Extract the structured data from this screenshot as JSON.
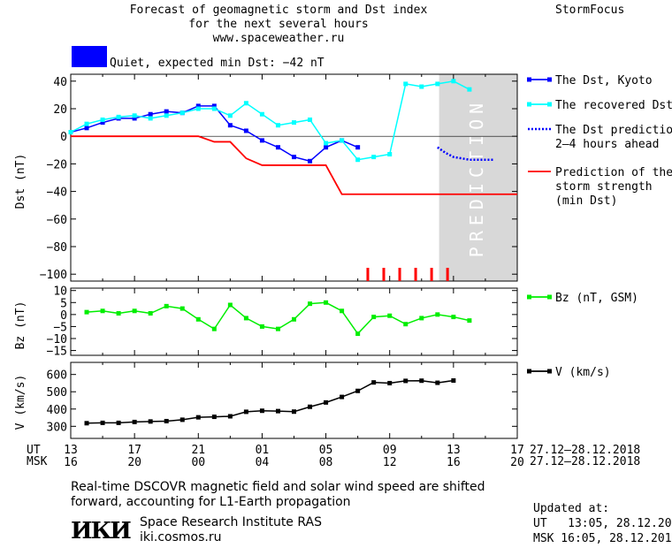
{
  "header": {
    "title_line1": "Forecast of geomagnetic storm and Dst index",
    "title_line2": "for the next several hours",
    "title_line3": "www.spaceweather.ru",
    "brand": "StormFocus"
  },
  "status": {
    "text": "Quiet, expected min Dst: −42 nT",
    "color": "#0000ff"
  },
  "time_axis": {
    "ut_label": "UT",
    "msk_label": "MSK",
    "ut_ticks": [
      "13",
      "17",
      "21",
      "01",
      "05",
      "09",
      "13",
      "17"
    ],
    "msk_ticks": [
      "16",
      "20",
      "00",
      "04",
      "08",
      "12",
      "16",
      "20"
    ],
    "ut_range_text": "27.12‒28.12.2018",
    "msk_range_text": "27.12‒28.12.2018"
  },
  "chart_data": [
    {
      "type": "line",
      "ylabel": "Dst (nT)",
      "ylim": [
        -105,
        45
      ],
      "yticks": [
        40,
        20,
        0,
        -20,
        -40,
        -60,
        -80,
        -100
      ],
      "x_range_hours": [
        0,
        28
      ],
      "prediction_region": {
        "from_hour": 23.1,
        "label": "PREDICTION"
      },
      "storm_markers_hours": [
        18.6,
        19.6,
        20.6,
        21.6,
        22.6,
        23.6
      ],
      "series": [
        {
          "name": "The Dst, Kyoto",
          "color": "#0000ff",
          "style": "line-square",
          "points": [
            [
              0,
              3
            ],
            [
              1,
              6
            ],
            [
              2,
              10
            ],
            [
              3,
              13
            ],
            [
              4,
              13
            ],
            [
              5,
              16
            ],
            [
              6,
              18
            ],
            [
              7,
              17
            ],
            [
              8,
              22
            ],
            [
              9,
              22
            ],
            [
              10,
              8
            ],
            [
              11,
              4
            ],
            [
              12,
              -3
            ],
            [
              13,
              -8
            ],
            [
              14,
              -15
            ],
            [
              15,
              -18
            ],
            [
              16,
              -8
            ],
            [
              17,
              -3
            ],
            [
              18,
              -8
            ]
          ]
        },
        {
          "name": "The recovered Dst",
          "color": "#00ffff",
          "style": "line-square",
          "points": [
            [
              0,
              3
            ],
            [
              1,
              9
            ],
            [
              2,
              12
            ],
            [
              3,
              14
            ],
            [
              4,
              15
            ],
            [
              5,
              13
            ],
            [
              6,
              15
            ],
            [
              7,
              17
            ],
            [
              8,
              20
            ],
            [
              9,
              20
            ],
            [
              10,
              15
            ],
            [
              11,
              24
            ],
            [
              12,
              16
            ],
            [
              13,
              8
            ],
            [
              14,
              10
            ],
            [
              15,
              12
            ],
            [
              16,
              -5
            ],
            [
              17,
              -3
            ],
            [
              18,
              -17
            ],
            [
              19,
              -15
            ],
            [
              20,
              -13
            ],
            [
              21,
              38
            ],
            [
              22,
              36
            ],
            [
              23,
              38
            ],
            [
              24,
              40
            ],
            [
              25,
              34
            ]
          ]
        },
        {
          "name": "The Dst prediction\n2–4 hours ahead",
          "color": "#0000ff",
          "style": "dotted",
          "points": [
            [
              23.0,
              -8
            ],
            [
              23.5,
              -12
            ],
            [
              24.0,
              -15
            ],
            [
              25.0,
              -17
            ],
            [
              26.5,
              -17
            ]
          ]
        },
        {
          "name": "Prediction of the\nstorm strength\n(min Dst)",
          "color": "#ff0000",
          "style": "line",
          "points": [
            [
              0,
              0
            ],
            [
              8,
              0
            ],
            [
              9,
              -4
            ],
            [
              10,
              -4
            ],
            [
              11,
              -16
            ],
            [
              12,
              -21
            ],
            [
              16,
              -21
            ],
            [
              17,
              -42
            ],
            [
              28,
              -42
            ]
          ]
        }
      ]
    },
    {
      "type": "line",
      "ylabel": "Bz (nT)",
      "ylim": [
        -17,
        11
      ],
      "yticks": [
        10,
        5,
        0,
        -5,
        -10,
        -15
      ],
      "series": [
        {
          "name": "Bz (nT, GSM)",
          "color": "#00ee00",
          "style": "line-square",
          "points": [
            [
              1,
              1
            ],
            [
              2,
              1.5
            ],
            [
              3,
              0.5
            ],
            [
              4,
              1.5
            ],
            [
              5,
              0.5
            ],
            [
              6,
              3.5
            ],
            [
              7,
              2.5
            ],
            [
              8,
              -2
            ],
            [
              9,
              -6
            ],
            [
              10,
              4
            ],
            [
              11,
              -1.5
            ],
            [
              12,
              -5
            ],
            [
              13,
              -6
            ],
            [
              14,
              -2
            ],
            [
              15,
              4.5
            ],
            [
              16,
              5
            ],
            [
              17,
              1.5
            ],
            [
              18,
              -8
            ],
            [
              19,
              -1
            ],
            [
              20,
              -0.5
            ],
            [
              21,
              -4
            ],
            [
              22,
              -1.5
            ],
            [
              23,
              0
            ],
            [
              24,
              -1
            ],
            [
              25,
              -2.5
            ]
          ]
        }
      ]
    },
    {
      "type": "line",
      "ylabel": "V (km/s)",
      "ylim": [
        230,
        670
      ],
      "yticks": [
        600,
        500,
        400,
        300
      ],
      "series": [
        {
          "name": "V (km/s)",
          "color": "#000000",
          "style": "line-square",
          "points": [
            [
              1,
              318
            ],
            [
              2,
              320
            ],
            [
              3,
              320
            ],
            [
              4,
              325
            ],
            [
              5,
              328
            ],
            [
              6,
              330
            ],
            [
              7,
              338
            ],
            [
              8,
              352
            ],
            [
              9,
              355
            ],
            [
              10,
              358
            ],
            [
              11,
              384
            ],
            [
              12,
              390
            ],
            [
              13,
              388
            ],
            [
              14,
              385
            ],
            [
              15,
              413
            ],
            [
              16,
              438
            ],
            [
              17,
              470
            ],
            [
              18,
              505
            ],
            [
              19,
              554
            ],
            [
              20,
              550
            ],
            [
              21,
              563
            ],
            [
              22,
              564
            ],
            [
              23,
              552
            ],
            [
              24,
              565
            ]
          ]
        }
      ]
    }
  ],
  "notes": {
    "shift_line1": "Real‑time DSCOVR magnetic field and solar wind speed are shifted",
    "shift_line2": "forward, accounting for L1‑Earth propagation"
  },
  "footer": {
    "logo_text": "ИКИ",
    "institute": "Space Research Institute RAS",
    "site": "iki.cosmos.ru",
    "updated_label": "Updated at:",
    "updated_ut": "UT   13:05, 28.12.2018",
    "updated_msk": "MSK 16:05, 28.12.2018"
  }
}
